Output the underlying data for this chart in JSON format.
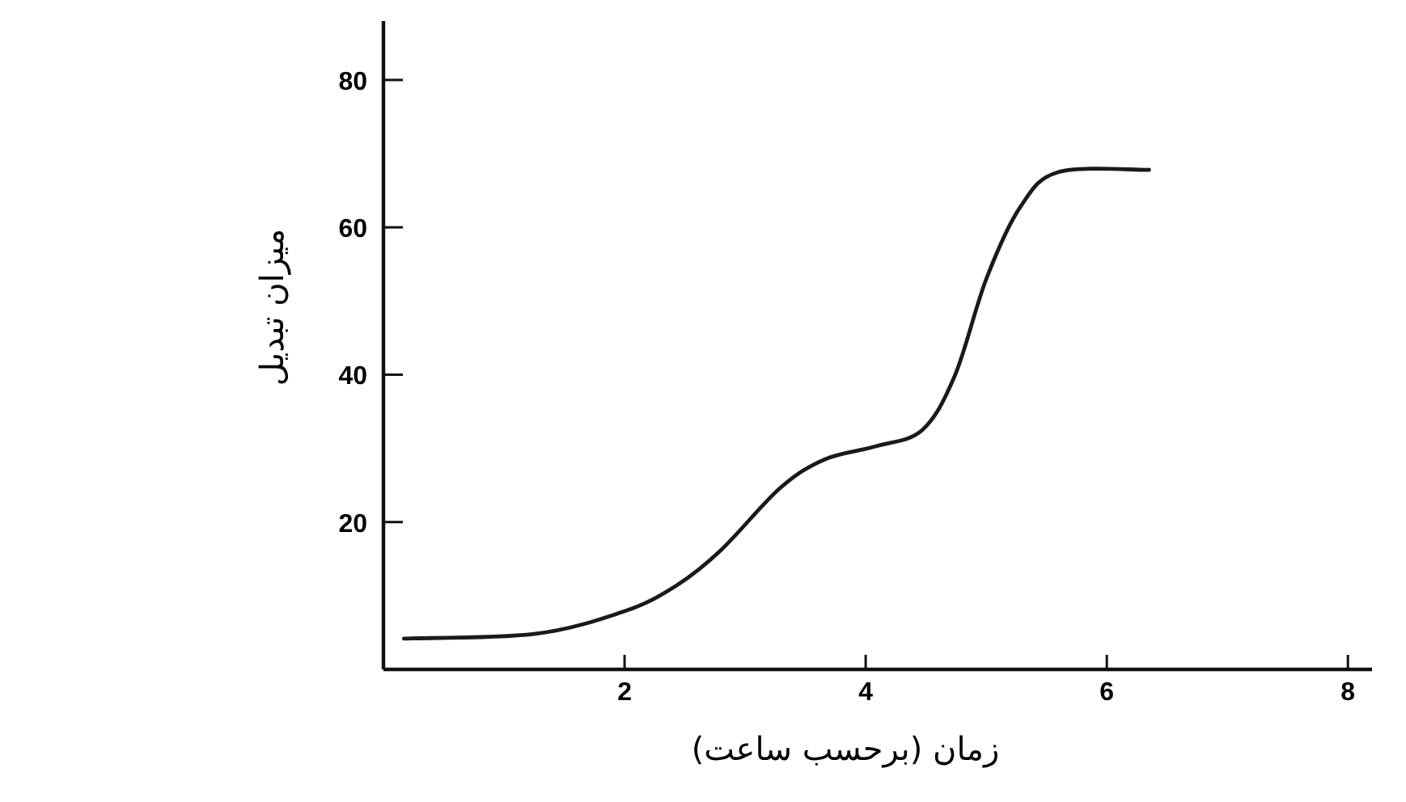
{
  "chart_data": {
    "type": "line",
    "xlabel": "زمان (برحسب ساعت)",
    "ylabel": "میزان تبدیل",
    "series": [
      {
        "color": "#1a1a1a",
        "x": [
          0.17,
          1.25,
          2.0,
          2.43,
          2.8,
          3.29,
          3.66,
          4.09,
          4.47,
          4.74,
          5.0,
          5.28,
          5.6,
          6.35
        ],
        "values": [
          4.2,
          4.8,
          7.9,
          11.4,
          16.2,
          24.6,
          28.5,
          30.3,
          32.5,
          39.9,
          53,
          62.7,
          67.5,
          67.8
        ]
      }
    ],
    "xlim": [
      0,
      8.2
    ],
    "ylim": [
      0,
      88
    ],
    "xticks": [
      2,
      4,
      6,
      8
    ],
    "yticks": [
      20,
      40,
      60,
      80
    ],
    "grid": false,
    "marker": "none",
    "line_style": "solid"
  }
}
